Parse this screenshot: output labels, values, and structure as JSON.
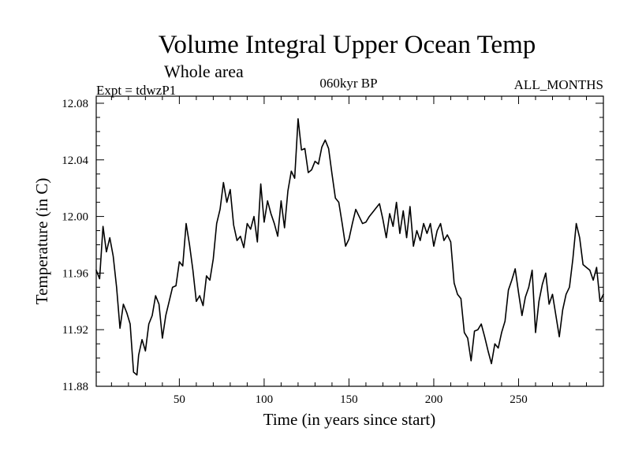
{
  "chart_data": {
    "type": "line",
    "title": "Volume Integral Upper Ocean Temp",
    "subtitle": "Whole area",
    "annotations": {
      "left": "Expt = tdwzP1",
      "center": "060kyr BP",
      "right": "ALL_MONTHS"
    },
    "xlabel": "Time (in years since start)",
    "ylabel": "Temperature (in C)",
    "xlim": [
      1,
      300
    ],
    "ylim": [
      11.88,
      12.085
    ],
    "xticks": [
      50,
      100,
      150,
      200,
      250
    ],
    "xtick_labels": [
      "50",
      "100",
      "150",
      "200",
      "250"
    ],
    "yticks": [
      11.88,
      11.92,
      11.96,
      12.0,
      12.04,
      12.08
    ],
    "ytick_labels": [
      "11.88",
      "11.92",
      "11.96",
      "12.00",
      "12.04",
      "12.08"
    ],
    "series": [
      {
        "name": "tdwzP1",
        "x": [
          1,
          3,
          5,
          7,
          9,
          11,
          13,
          15,
          17,
          19,
          21,
          23,
          25,
          26,
          28,
          30,
          32,
          34,
          36,
          38,
          40,
          42,
          44,
          46,
          48,
          50,
          52,
          54,
          56,
          58,
          60,
          62,
          64,
          66,
          68,
          70,
          72,
          74,
          76,
          78,
          80,
          82,
          84,
          86,
          88,
          90,
          92,
          94,
          96,
          98,
          100,
          102,
          104,
          106,
          108,
          110,
          112,
          114,
          116,
          118,
          120,
          122,
          124,
          126,
          128,
          130,
          132,
          134,
          136,
          138,
          140,
          142,
          144,
          146,
          148,
          150,
          152,
          154,
          156,
          158,
          160,
          162,
          164,
          166,
          168,
          170,
          172,
          174,
          176,
          178,
          180,
          182,
          184,
          186,
          188,
          190,
          192,
          194,
          196,
          198,
          200,
          202,
          204,
          206,
          208,
          210,
          212,
          214,
          216,
          218,
          220,
          222,
          224,
          226,
          228,
          230,
          232,
          234,
          236,
          238,
          240,
          242,
          244,
          246,
          248,
          250,
          252,
          254,
          256,
          258,
          260,
          262,
          264,
          266,
          268,
          270,
          272,
          274,
          276,
          278,
          280,
          282,
          284,
          286,
          288,
          290,
          292,
          294,
          296,
          298,
          300
        ],
        "values": [
          11.962,
          11.956,
          11.993,
          11.975,
          11.985,
          11.972,
          11.95,
          11.921,
          11.938,
          11.932,
          11.924,
          11.89,
          11.888,
          11.902,
          11.913,
          11.905,
          11.924,
          11.93,
          11.944,
          11.938,
          11.914,
          11.93,
          11.94,
          11.95,
          11.951,
          11.968,
          11.965,
          11.995,
          11.98,
          11.962,
          11.94,
          11.944,
          11.937,
          11.958,
          11.955,
          11.97,
          11.995,
          12.005,
          12.024,
          12.01,
          12.019,
          11.994,
          11.983,
          11.986,
          11.978,
          11.995,
          11.991,
          12.0,
          11.982,
          12.023,
          11.996,
          12.011,
          12.002,
          11.995,
          11.986,
          12.011,
          11.992,
          12.018,
          12.032,
          12.027,
          12.069,
          12.047,
          12.048,
          12.031,
          12.033,
          12.039,
          12.037,
          12.049,
          12.054,
          12.048,
          12.03,
          12.013,
          12.01,
          11.995,
          11.979,
          11.984,
          11.995,
          12.005,
          12.0,
          11.995,
          11.996,
          12.0,
          12.003,
          12.006,
          12.009,
          11.998,
          11.985,
          12.002,
          11.993,
          12.01,
          11.988,
          12.004,
          11.985,
          12.007,
          11.979,
          11.99,
          11.983,
          11.995,
          11.988,
          11.995,
          11.979,
          11.99,
          11.995,
          11.983,
          11.987,
          11.982,
          11.953,
          11.945,
          11.942,
          11.918,
          11.914,
          11.898,
          11.919,
          11.92,
          11.924,
          11.915,
          11.905,
          11.896,
          11.91,
          11.907,
          11.918,
          11.926,
          11.948,
          11.955,
          11.963,
          11.946,
          11.93,
          11.943,
          11.95,
          11.962,
          11.918,
          11.94,
          11.952,
          11.96,
          11.938,
          11.945,
          11.93,
          11.915,
          11.934,
          11.945,
          11.95,
          11.97,
          11.995,
          11.985,
          11.966,
          11.964,
          11.962,
          11.955,
          11.964,
          11.94,
          11.945
        ]
      }
    ],
    "colors": {
      "line": "#000000",
      "axis": "#000000",
      "background": "#ffffff"
    }
  }
}
